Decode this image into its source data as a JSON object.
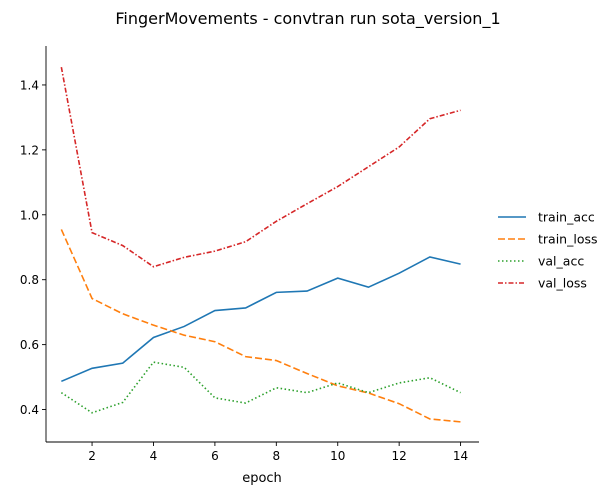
{
  "chart_data": {
    "type": "line",
    "title": "FingerMovements - convtran run sota_version_1",
    "xlabel": "epoch",
    "ylabel": "",
    "xlim": [
      0.5,
      14.6
    ],
    "ylim": [
      0.3,
      1.52
    ],
    "xticks": [
      2,
      4,
      6,
      8,
      10,
      12,
      14
    ],
    "yticks": [
      0.4,
      0.6,
      0.8,
      1.0,
      1.2,
      1.4
    ],
    "ytick_labels": [
      "0.4",
      "0.6",
      "0.8",
      "1.0",
      "1.2",
      "1.4"
    ],
    "grid": false,
    "legend_position": "right",
    "x": [
      1,
      2,
      3,
      4,
      5,
      6,
      7,
      8,
      9,
      10,
      11,
      12,
      13,
      14
    ],
    "series": [
      {
        "name": "train_acc",
        "color": "#1f77b4",
        "dash": "solid",
        "values": [
          0.487,
          0.527,
          0.543,
          0.622,
          0.656,
          0.705,
          0.713,
          0.761,
          0.765,
          0.805,
          0.777,
          0.82,
          0.87,
          0.848
        ]
      },
      {
        "name": "train_loss",
        "color": "#ff7f0e",
        "dash": "dashed",
        "values": [
          0.955,
          0.742,
          0.695,
          0.66,
          0.629,
          0.609,
          0.563,
          0.551,
          0.511,
          0.473,
          0.451,
          0.418,
          0.371,
          0.362
        ]
      },
      {
        "name": "val_acc",
        "color": "#2ca02c",
        "dash": "dotted",
        "values": [
          0.452,
          0.39,
          0.422,
          0.546,
          0.53,
          0.436,
          0.42,
          0.467,
          0.452,
          0.482,
          0.452,
          0.482,
          0.498,
          0.452
        ]
      },
      {
        "name": "val_loss",
        "color": "#d62728",
        "dash": "dashdot",
        "values": [
          1.455,
          0.945,
          0.905,
          0.84,
          0.869,
          0.888,
          0.917,
          0.98,
          1.034,
          1.087,
          1.148,
          1.209,
          1.296,
          1.322
        ]
      }
    ]
  }
}
